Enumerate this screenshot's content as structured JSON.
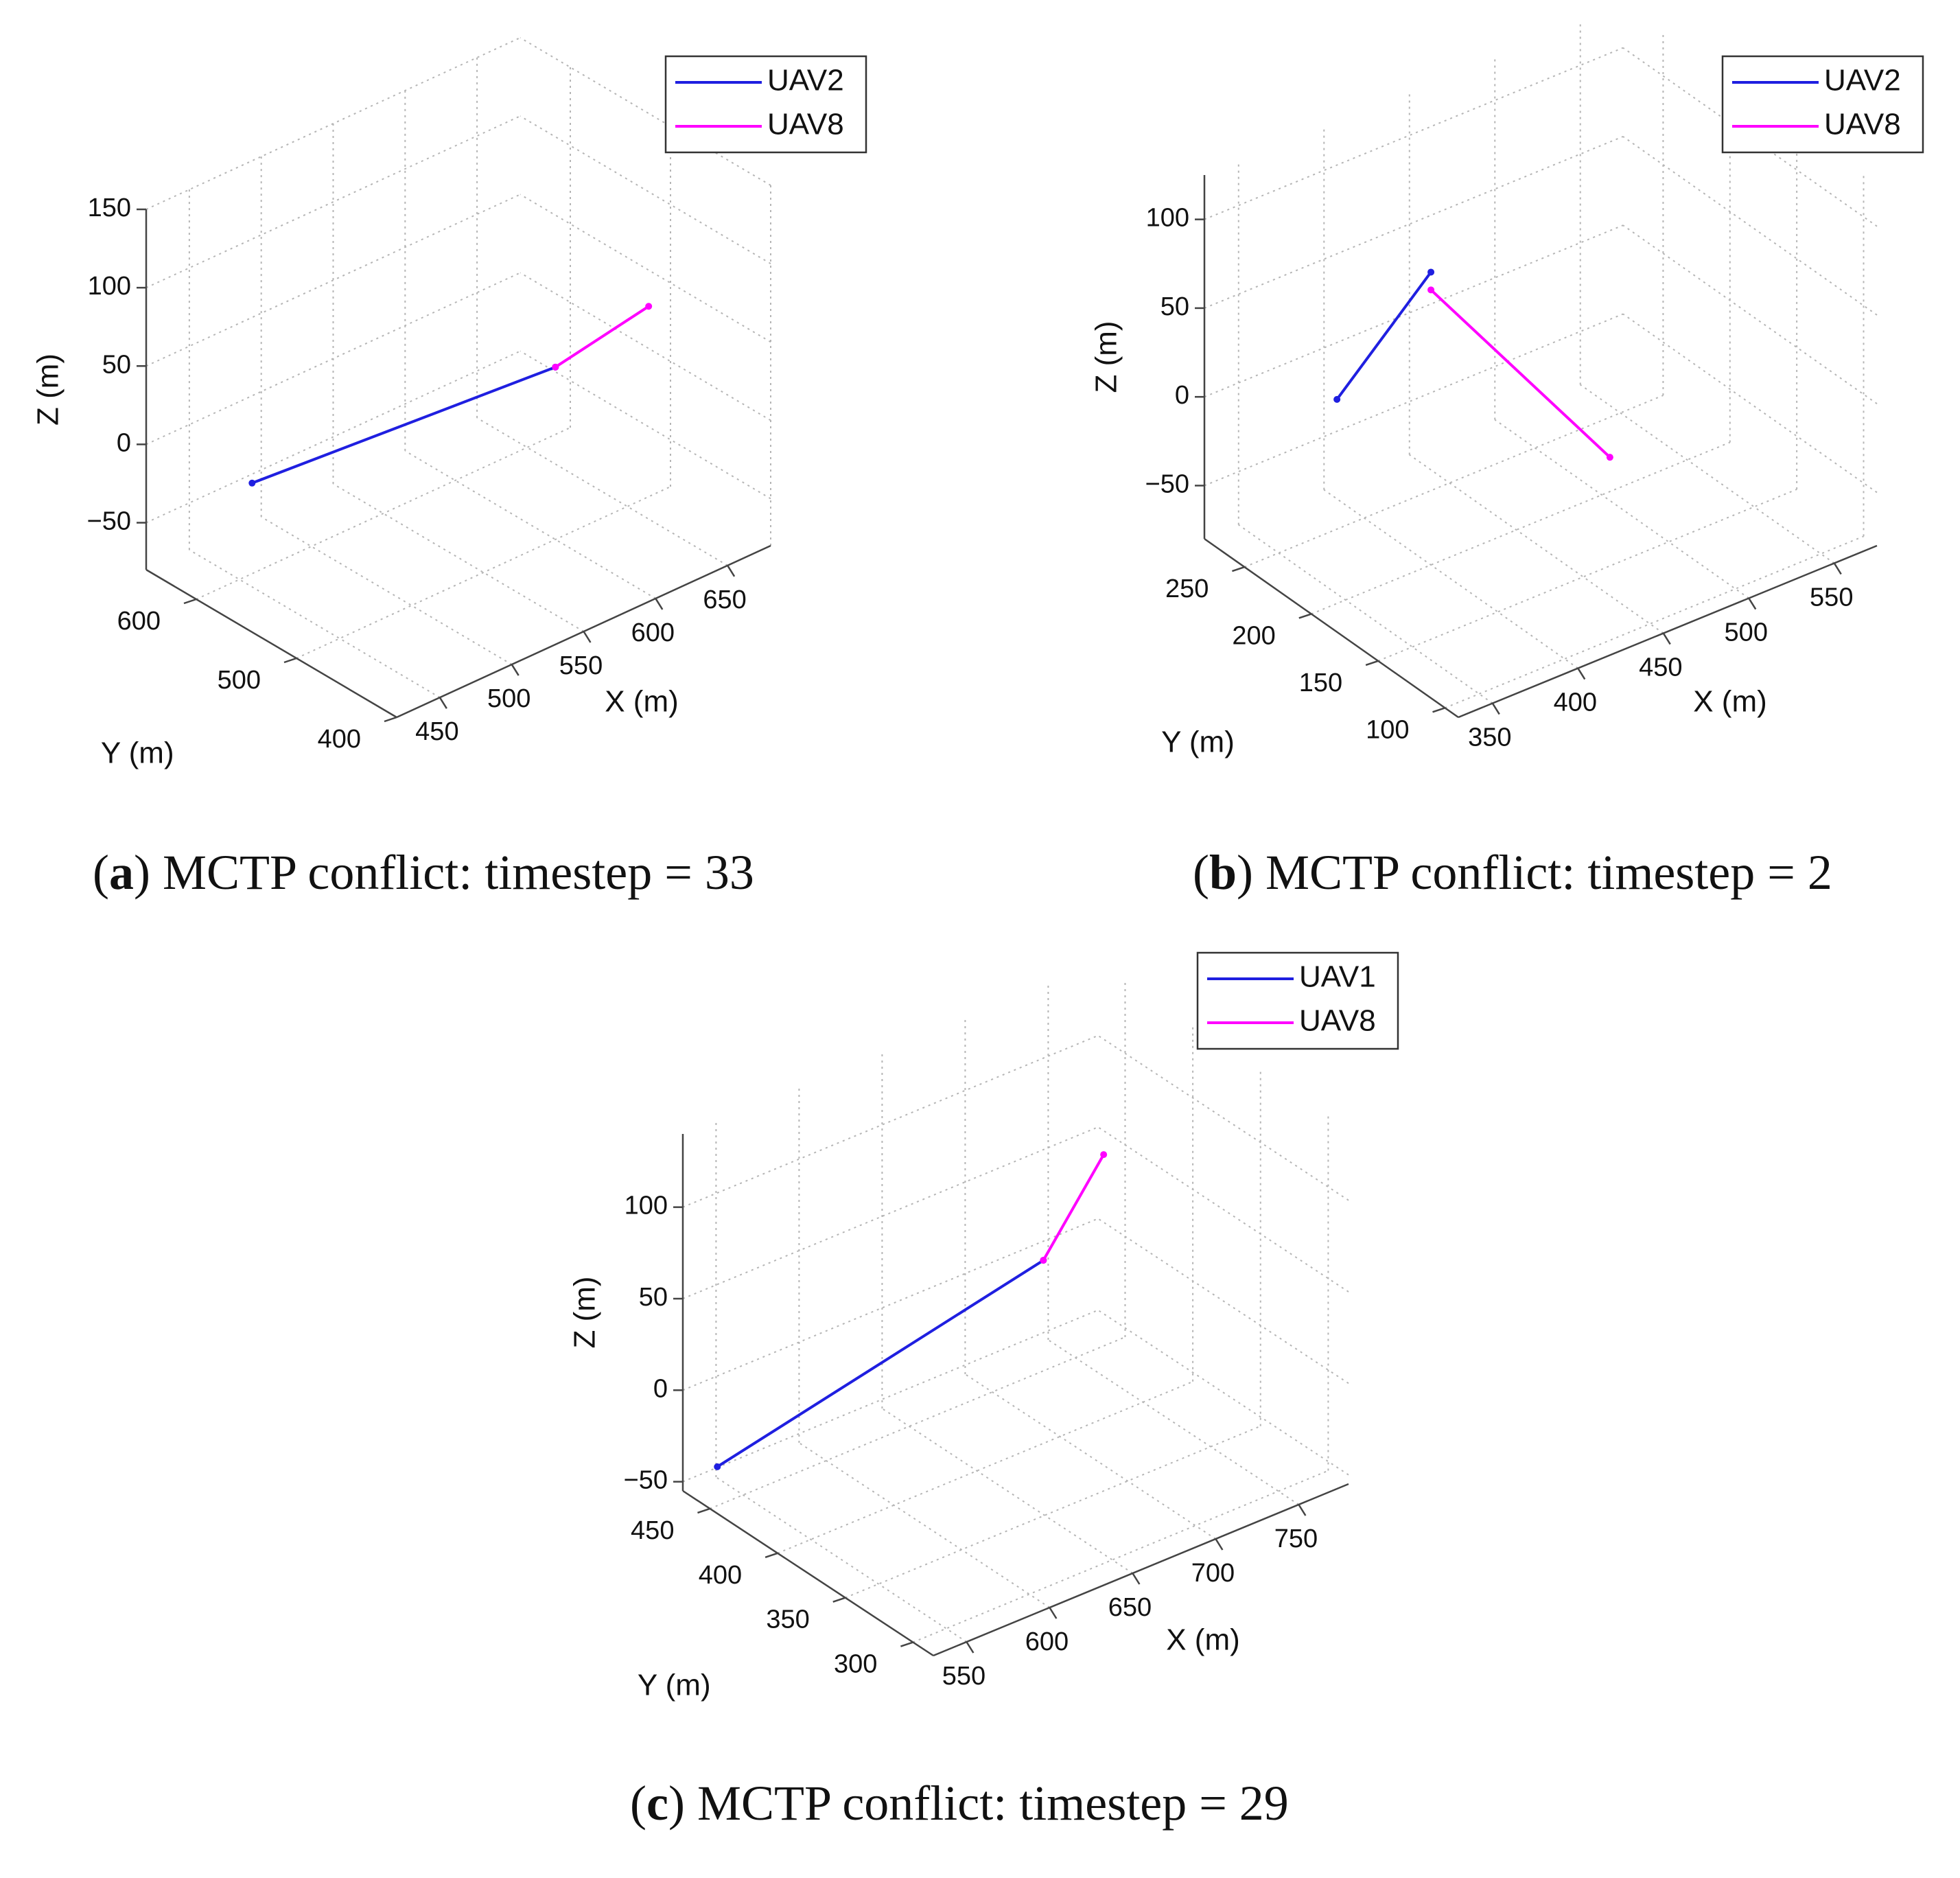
{
  "colors": {
    "series1": "#1f1fe0",
    "series2": "#ff00ff",
    "grid": "#b5b5b5",
    "axis": "#444444",
    "text": "#111111"
  },
  "chart_data": [
    {
      "type": "line3d",
      "caption": {
        "letter": "a",
        "text": "MCTP conflict: timestep = 33"
      },
      "xlabel": "X (m)",
      "ylabel": "Y (m)",
      "zlabel": "Z (m)",
      "x_ticks": [
        450,
        500,
        550,
        600,
        650
      ],
      "y_ticks": [
        400,
        500,
        600
      ],
      "z_ticks": [
        -50,
        0,
        50,
        100,
        150
      ],
      "series": [
        {
          "name": "UAV2",
          "color": "#1f1fe0",
          "points": [
            [
              417,
              540,
              18
            ],
            [
              600,
              500,
              30
            ]
          ]
        },
        {
          "name": "UAV8",
          "color": "#ff00ff",
          "points": [
            [
              600,
              500,
              30
            ],
            [
              630,
              450,
              75
            ]
          ]
        }
      ]
    },
    {
      "type": "line3d",
      "caption": {
        "letter": "b",
        "text": "MCTP conflict: timestep = 2"
      },
      "xlabel": "X (m)",
      "ylabel": "Y (m)",
      "zlabel": "Z (m)",
      "x_ticks": [
        350,
        400,
        450,
        500,
        550
      ],
      "y_ticks": [
        100,
        150,
        200,
        250
      ],
      "z_ticks": [
        -50,
        0,
        50,
        100
      ],
      "series": [
        {
          "name": "UAV2",
          "color": "#1f1fe0",
          "points": [
            [
              345,
              200,
              35
            ],
            [
              400,
              200,
              85
            ]
          ]
        },
        {
          "name": "UAV8",
          "color": "#ff00ff",
          "points": [
            [
              400,
              200,
              75
            ],
            [
              450,
              130,
              -2
            ]
          ]
        }
      ]
    },
    {
      "type": "line3d",
      "caption": {
        "letter": "c",
        "text": "MCTP conflict: timestep = 29"
      },
      "xlabel": "X (m)",
      "ylabel": "Y (m)",
      "zlabel": "Z (m)",
      "x_ticks": [
        550,
        600,
        650,
        700,
        750
      ],
      "y_ticks": [
        300,
        350,
        400,
        450
      ],
      "z_ticks": [
        -50,
        0,
        50,
        100
      ],
      "series": [
        {
          "name": "UAV1",
          "color": "#1f1fe0",
          "points": [
            [
              510,
              420,
              -10
            ],
            [
              690,
              400,
              45
            ]
          ]
        },
        {
          "name": "UAV8",
          "color": "#ff00ff",
          "points": [
            [
              690,
              400,
              45
            ],
            [
              710,
              380,
              105
            ]
          ]
        }
      ]
    }
  ]
}
